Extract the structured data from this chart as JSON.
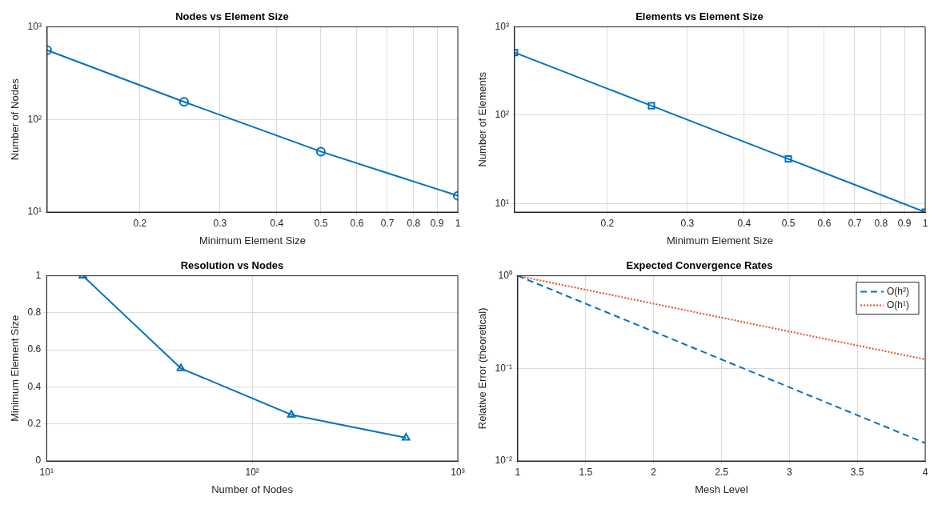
{
  "chart_data": [
    {
      "type": "line",
      "title": "Nodes vs Element Size",
      "xlabel": "Minimum Element Size",
      "ylabel": "Number of Nodes",
      "log": "xy",
      "grid": true,
      "marker": "circle",
      "legend": false,
      "x": [
        0.125,
        0.25,
        0.5,
        1
      ],
      "series": [
        {
          "color": "#0072bd",
          "values": [
            560,
            155,
            45,
            15
          ]
        }
      ],
      "xlim": [
        0.125,
        1
      ],
      "xticks": [
        0.2,
        0.3,
        0.4,
        0.5,
        0.6,
        0.7,
        0.8,
        0.9,
        1
      ],
      "ylim": [
        10,
        1000
      ],
      "yticks": [
        {
          "value": 10,
          "label": "10¹"
        },
        {
          "value": 100,
          "label": "10²"
        },
        {
          "value": 1000,
          "label": "10³"
        }
      ]
    },
    {
      "type": "line",
      "title": "Elements vs Element Size",
      "xlabel": "Minimum Element Size",
      "ylabel": "Number of Elements",
      "log": "xy",
      "grid": true,
      "marker": "square",
      "legend": false,
      "x": [
        0.125,
        0.25,
        0.5,
        1
      ],
      "series": [
        {
          "color": "#0072bd",
          "values": [
            512,
            128,
            32,
            8
          ]
        }
      ],
      "xlim": [
        0.125,
        1
      ],
      "xticks": [
        0.2,
        0.3,
        0.4,
        0.5,
        0.6,
        0.7,
        0.8,
        0.9,
        1
      ],
      "ylim": [
        8,
        1000
      ],
      "yticks": [
        {
          "value": 10,
          "label": "10¹"
        },
        {
          "value": 100,
          "label": "10²"
        },
        {
          "value": 1000,
          "label": "10³"
        }
      ]
    },
    {
      "type": "line",
      "title": "Resolution vs Nodes",
      "xlabel": "Number of Nodes",
      "ylabel": "Minimum Element Size",
      "log": "x",
      "grid": true,
      "marker": "triangle",
      "legend": false,
      "x": [
        15,
        45,
        155,
        560
      ],
      "series": [
        {
          "color": "#0072bd",
          "values": [
            1,
            0.5,
            0.25,
            0.125
          ]
        }
      ],
      "xlim": [
        10,
        1000
      ],
      "xticks": [
        {
          "value": 10,
          "label": "10¹"
        },
        {
          "value": 100,
          "label": "10²"
        },
        {
          "value": 1000,
          "label": "10³"
        }
      ],
      "ylim": [
        0,
        1
      ],
      "yticks": [
        0,
        0.2,
        0.4,
        0.6,
        0.8,
        1
      ]
    },
    {
      "type": "line",
      "title": "Expected Convergence Rates",
      "xlabel": "Mesh Level",
      "ylabel": "Relative Error (theoretical)",
      "log": "y",
      "grid": true,
      "marker": "none",
      "legend": "top right",
      "x": [
        1,
        2,
        3,
        4
      ],
      "series": [
        {
          "name": "O(h²)",
          "color": "#0072bd",
          "line_style": "dashed",
          "values": [
            1,
            0.25,
            0.0625,
            0.0156
          ]
        },
        {
          "name": "O(h¹)",
          "color": "#d95319",
          "line_style": "dotted",
          "values": [
            1,
            0.5,
            0.25,
            0.125
          ]
        }
      ],
      "xlim": [
        1,
        4
      ],
      "xticks": [
        1,
        1.5,
        2,
        2.5,
        3,
        3.5,
        4
      ],
      "ylim": [
        0.01,
        1
      ],
      "yticks": [
        {
          "value": 0.01,
          "label": "10⁻²"
        },
        {
          "value": 0.1,
          "label": "10⁻¹"
        },
        {
          "value": 1,
          "label": "10⁰"
        }
      ]
    }
  ]
}
